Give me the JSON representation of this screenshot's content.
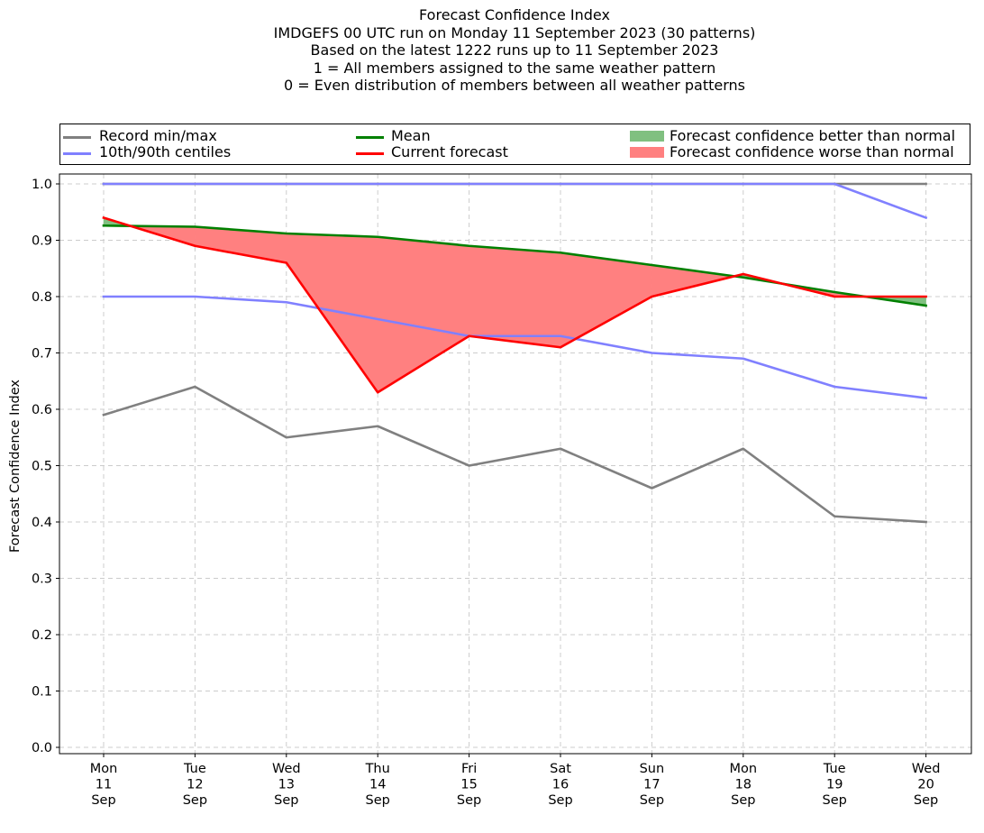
{
  "title_lines": [
    "Forecast Confidence Index",
    "IMDGEFS 00 UTC run on Monday 11 September 2023 (30 patterns)",
    "Based on the latest 1222 runs up to 11 September 2023",
    "1 = All members assigned to the same weather pattern",
    "0 = Even distribution of members between all weather patterns"
  ],
  "legend": {
    "record": "Record min/max",
    "centiles": "10th/90th centiles",
    "mean": "Mean",
    "current": "Current forecast",
    "better": "Forecast confidence better than normal",
    "worse": "Forecast confidence worse than normal"
  },
  "colors": {
    "record": "#808080",
    "centiles": "#8080ff",
    "mean": "#008000",
    "current": "#ff0000",
    "better": "#80c080",
    "worse": "#ff8080",
    "grid": "#cccccc"
  },
  "chart_data": {
    "type": "line",
    "title": "Forecast Confidence Index",
    "ylabel": "Forecast Confidence Index",
    "xlabel": "",
    "ylim": [
      0.0,
      1.0
    ],
    "yticks": [
      "0.0",
      "0.1",
      "0.2",
      "0.3",
      "0.4",
      "0.5",
      "0.6",
      "0.7",
      "0.8",
      "0.9",
      "1.0"
    ],
    "categories": [
      [
        "Mon",
        "11",
        "Sep"
      ],
      [
        "Tue",
        "12",
        "Sep"
      ],
      [
        "Wed",
        "13",
        "Sep"
      ],
      [
        "Thu",
        "14",
        "Sep"
      ],
      [
        "Fri",
        "15",
        "Sep"
      ],
      [
        "Sat",
        "16",
        "Sep"
      ],
      [
        "Sun",
        "17",
        "Sep"
      ],
      [
        "Mon",
        "18",
        "Sep"
      ],
      [
        "Tue",
        "19",
        "Sep"
      ],
      [
        "Wed",
        "20",
        "Sep"
      ]
    ],
    "grid": true,
    "legend_position": "top",
    "series": [
      {
        "name": "Record min/max",
        "key": "record_max",
        "values": [
          1.0,
          1.0,
          1.0,
          1.0,
          1.0,
          1.0,
          1.0,
          1.0,
          1.0,
          1.0
        ]
      },
      {
        "name": "Record min/max",
        "key": "record_min",
        "values": [
          0.59,
          0.64,
          0.55,
          0.57,
          0.5,
          0.53,
          0.46,
          0.53,
          0.41,
          0.4
        ]
      },
      {
        "name": "10th/90th centiles",
        "key": "p90",
        "values": [
          1.0,
          1.0,
          1.0,
          1.0,
          1.0,
          1.0,
          1.0,
          1.0,
          1.0,
          0.94
        ]
      },
      {
        "name": "10th/90th centiles",
        "key": "p10",
        "values": [
          0.8,
          0.8,
          0.79,
          0.76,
          0.73,
          0.73,
          0.7,
          0.69,
          0.64,
          0.62
        ]
      },
      {
        "name": "Mean",
        "key": "mean",
        "values": [
          0.926,
          0.924,
          0.912,
          0.906,
          0.89,
          0.878,
          0.856,
          0.834,
          0.808,
          0.784
        ]
      },
      {
        "name": "Current forecast",
        "key": "current",
        "values": [
          0.94,
          0.89,
          0.86,
          0.63,
          0.73,
          0.71,
          0.8,
          0.84,
          0.8,
          0.8
        ]
      }
    ]
  }
}
